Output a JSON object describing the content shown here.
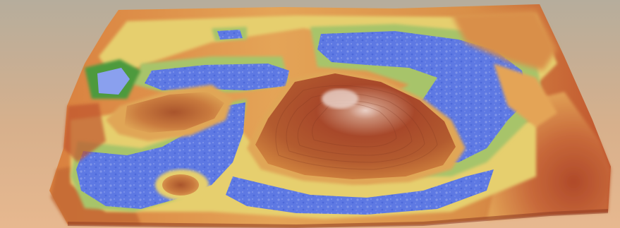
{
  "scene": {
    "kind": "3D shaded terrain relief rendering",
    "background_gradient": [
      "#b6ad9c",
      "#d7b08c",
      "#e7b88f"
    ],
    "elevation_palette": {
      "water": "#5e79e3",
      "water_light": "#8fa2ec",
      "shore": "#a7c46b",
      "lowland": "#e6cf6e",
      "midland": "#e4a457",
      "upland": "#c46b34",
      "highland": "#a8482a",
      "peak": "#d9b3a8"
    }
  }
}
